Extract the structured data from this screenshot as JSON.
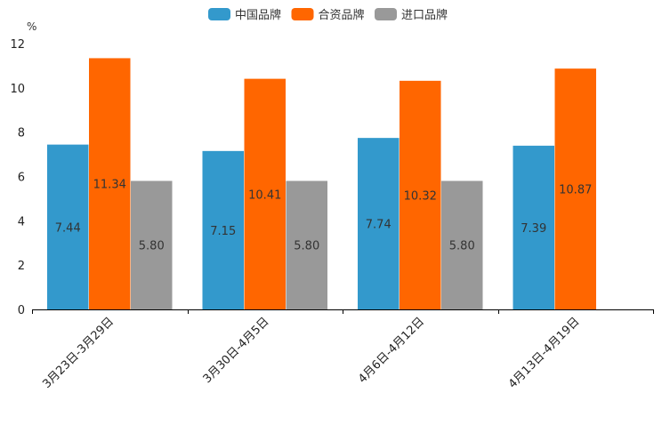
{
  "chart_data": {
    "type": "bar",
    "title": "",
    "ylabel": "%",
    "xlabel": "",
    "ylim": [
      0,
      12
    ],
    "yticks": [
      0,
      2,
      4,
      6,
      8,
      10,
      12
    ],
    "grid": false,
    "legend_position": "top-center",
    "categories": [
      "3月23日-3月29日",
      "3月30日-4月5日",
      "4月6日-4月12日",
      "4月13日-4月19日"
    ],
    "series": [
      {
        "name": "中国品牌",
        "color": "#3399cc",
        "values": [
          7.44,
          7.15,
          7.74,
          7.39
        ],
        "labels": [
          "7.44",
          "7.15",
          "7.74",
          "7.39"
        ]
      },
      {
        "name": "合资品牌",
        "color": "#ff6600",
        "values": [
          11.34,
          10.41,
          10.32,
          10.87
        ],
        "labels": [
          "11.34",
          "10.41",
          "10.32",
          "10.87"
        ]
      },
      {
        "name": "进口品牌",
        "color": "#999999",
        "values": [
          5.8,
          5.8,
          5.8,
          null
        ],
        "labels": [
          "5.80",
          "5.80",
          "5.80",
          null
        ]
      }
    ]
  }
}
